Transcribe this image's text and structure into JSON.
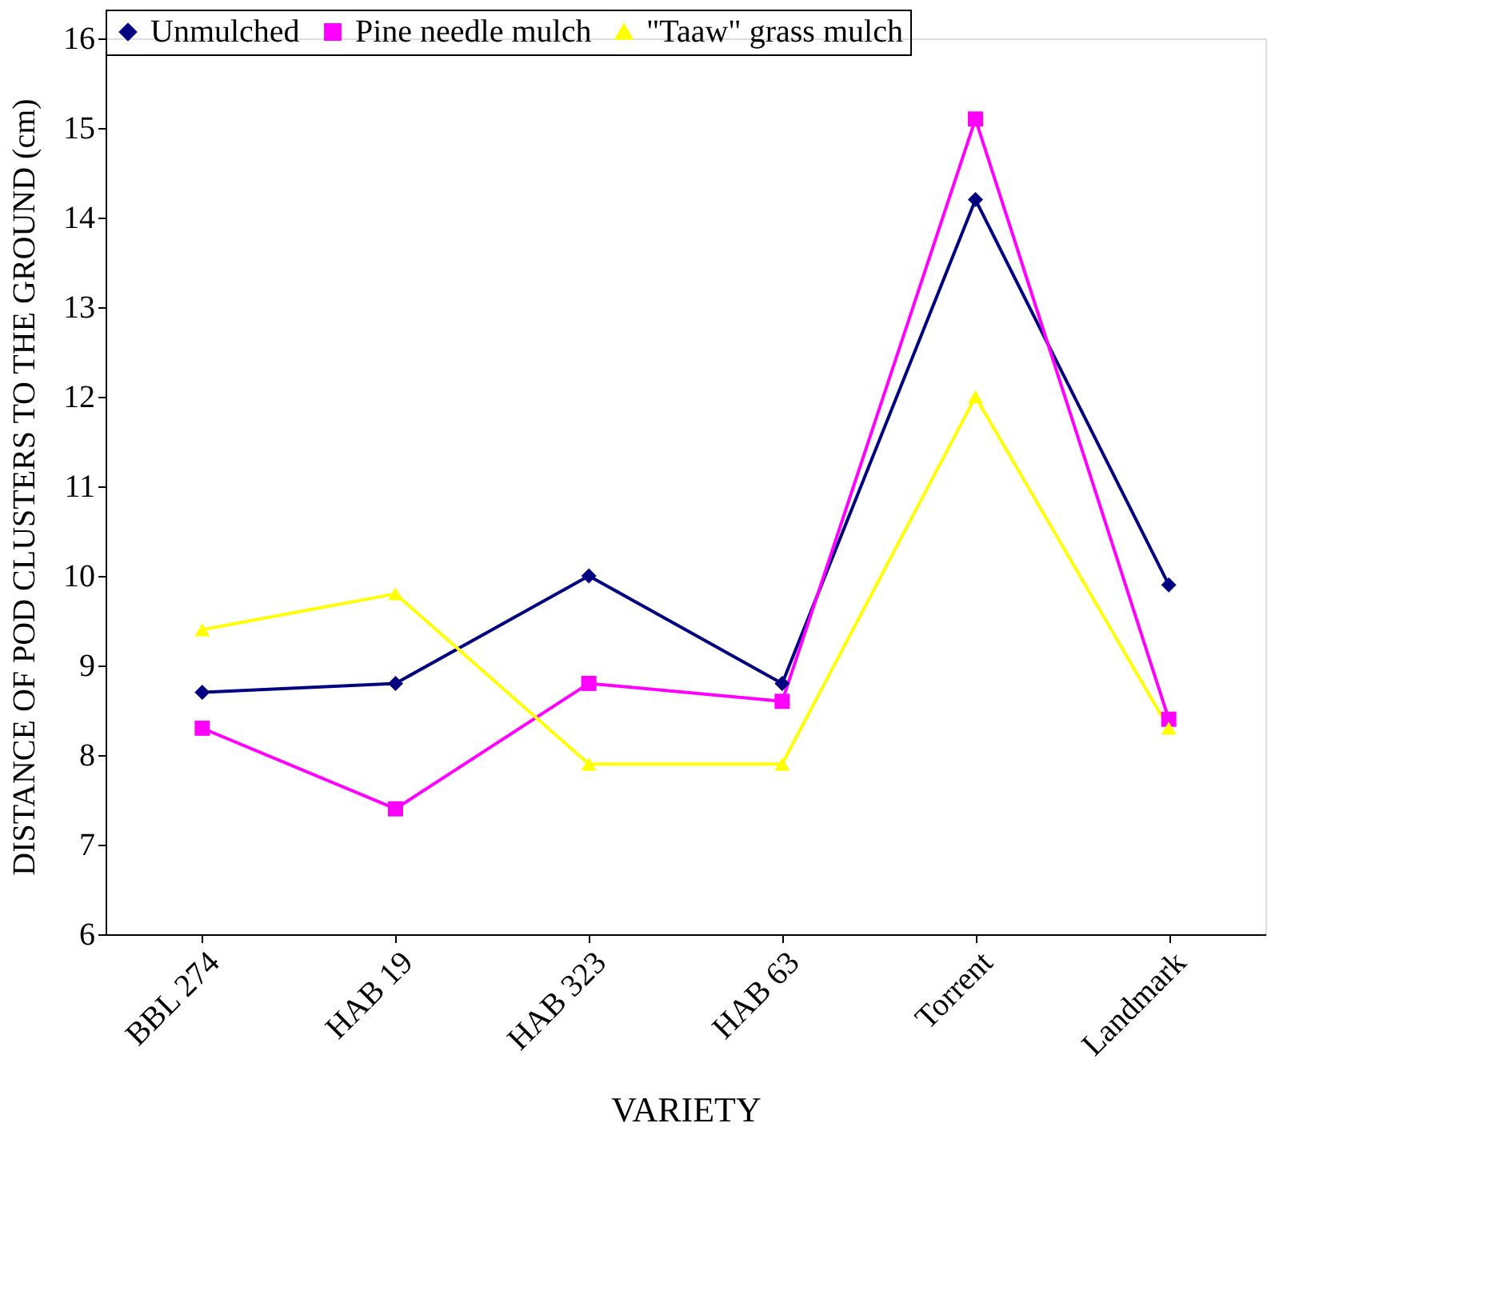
{
  "chart_data": {
    "type": "line",
    "xlabel": "VARIETY",
    "ylabel": "DISTANCE OF POD CLUSTERS TO THE GROUND (cm)",
    "categories": [
      "BBL 274",
      "HAB 19",
      "HAB 323",
      "HAB 63",
      "Torrent",
      "Landmark"
    ],
    "series": [
      {
        "name": "Unmulched",
        "color": "#000080",
        "marker": "diamond",
        "values": [
          8.7,
          8.8,
          10.0,
          8.8,
          14.2,
          9.9
        ]
      },
      {
        "name": "Pine needle mulch",
        "color": "#ff00ff",
        "marker": "square",
        "values": [
          8.3,
          7.4,
          8.8,
          8.6,
          15.1,
          8.4
        ]
      },
      {
        "name": "\"Taaw\" grass mulch",
        "color": "#ffff00",
        "marker": "triangle",
        "values": [
          9.4,
          9.8,
          7.9,
          7.9,
          12.0,
          8.3
        ]
      }
    ],
    "ylim": [
      6,
      16
    ],
    "yticks": [
      6,
      7,
      8,
      9,
      10,
      11,
      12,
      13,
      14,
      15,
      16
    ],
    "grid": false,
    "legend": "top",
    "line_style": "solid"
  }
}
